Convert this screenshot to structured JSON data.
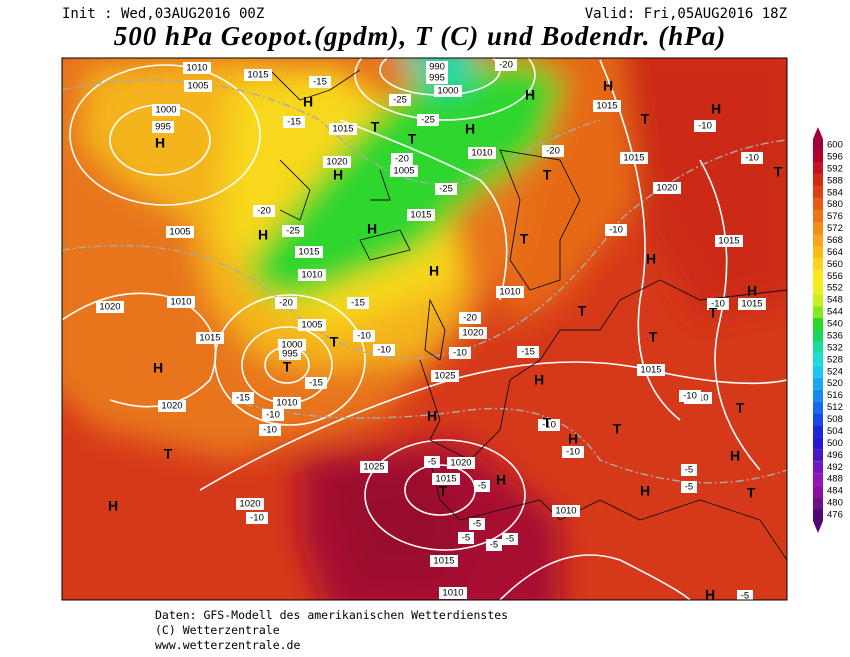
{
  "header": {
    "init": "Init : Wed,03AUG2016 00Z",
    "valid": "Valid: Fri,05AUG2016 18Z",
    "title": "500 hPa Geopot.(gpdm), T (C) und Bodendr. (hPa)"
  },
  "footer": {
    "lines": [
      "Daten: GFS-Modell des amerikanischen Wetterdienstes",
      "(C) Wetterzentrale",
      "www.wetterzentrale.de"
    ]
  },
  "colorbar": {
    "levels": [
      600,
      596,
      592,
      588,
      584,
      580,
      576,
      572,
      568,
      564,
      560,
      556,
      552,
      548,
      544,
      540,
      536,
      532,
      528,
      524,
      520,
      516,
      512,
      508,
      504,
      500,
      496,
      492,
      488,
      484,
      480,
      476
    ],
    "colors": [
      "#a0003a",
      "#b4002a",
      "#c8141e",
      "#d42a14",
      "#de4014",
      "#e65a14",
      "#ee7418",
      "#f48c1c",
      "#f8a41c",
      "#fabc1c",
      "#fcd41c",
      "#fce81c",
      "#f0f01c",
      "#c8f01c",
      "#8ce81c",
      "#28d828",
      "#18d860",
      "#18dca0",
      "#18e0d8",
      "#18c8f0",
      "#18a8f0",
      "#1888f0",
      "#1868f0",
      "#1848e8",
      "#1c28e0",
      "#2818d0",
      "#4818c8",
      "#7018c0",
      "#9018b8",
      "#8c10a0",
      "#701088",
      "#500870"
    ]
  },
  "map": {
    "isobar_labels": [
      "1010",
      "1015",
      "1005",
      "1000",
      "995",
      "990",
      "995",
      "1000",
      "1015",
      "1020",
      "1005",
      "1010",
      "1015",
      "1015",
      "1010",
      "1005",
      "1010",
      "1020",
      "1015",
      "1005",
      "1000",
      "995",
      "1020",
      "1010",
      "1025",
      "1010",
      "1020",
      "1025",
      "1020",
      "1015",
      "1020",
      "1010",
      "1015",
      "1010",
      "1015",
      "1015",
      "1020",
      "1015",
      "1015",
      "1015",
      "1010"
    ],
    "temperature_labels": [
      "-15",
      "-20",
      "-25",
      "-20",
      "-25",
      "-25",
      "-20",
      "-20",
      "-10",
      "-10",
      "-10",
      "-10",
      "-15",
      "-10",
      "-10",
      "-10",
      "-15",
      "-20",
      "-15",
      "-10",
      "-10",
      "-15",
      "-10",
      "-10",
      "-10",
      "-5",
      "-5",
      "-5",
      "-5",
      "-5",
      "-5",
      "-5",
      "-5",
      "-10",
      "-5",
      "-20",
      "-25",
      "-15"
    ],
    "pressure_centers": [
      "H",
      "H",
      "H",
      "T",
      "T",
      "H",
      "H",
      "H",
      "H",
      "T",
      "T",
      "H",
      "H",
      "H",
      "T",
      "T",
      "T",
      "T",
      "T",
      "H",
      "T",
      "H",
      "H",
      "T",
      "H",
      "H",
      "T",
      "H",
      "T",
      "T",
      "H",
      "T",
      "H",
      "T",
      "H",
      "H",
      "T",
      "H"
    ]
  }
}
